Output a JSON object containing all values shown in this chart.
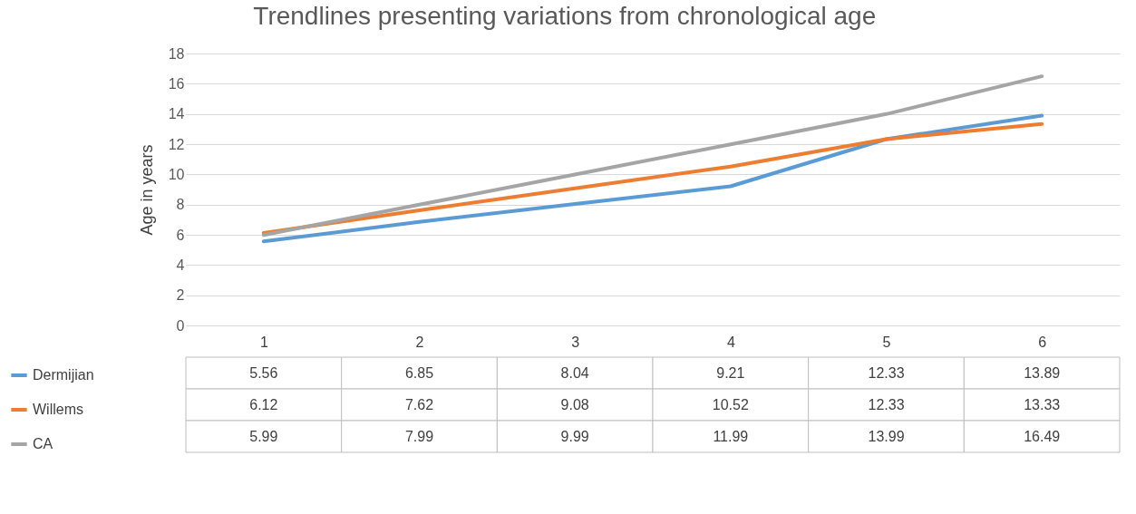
{
  "chart_data": {
    "type": "line",
    "title": "Trendlines presenting variations from chronological age",
    "ylabel": "Age in years",
    "categories": [
      "1",
      "2",
      "3",
      "4",
      "5",
      "6"
    ],
    "series": [
      {
        "name": "Dermijian",
        "color": "#5b9bd5",
        "values": [
          5.56,
          6.85,
          8.04,
          9.21,
          12.33,
          13.89
        ],
        "value_labels": [
          "5.56",
          "6.85",
          "8.04",
          "9.21",
          "12.33",
          "13.89"
        ]
      },
      {
        "name": "Willems",
        "color": "#ed7d31",
        "values": [
          6.12,
          7.62,
          9.08,
          10.52,
          12.33,
          13.33
        ],
        "value_labels": [
          "6.12",
          "7.62",
          "9.08",
          "10.52",
          "12.33",
          "13.33"
        ]
      },
      {
        "name": "CA",
        "color": "#a5a5a5",
        "values": [
          5.99,
          7.99,
          9.99,
          11.99,
          13.99,
          16.49
        ],
        "value_labels": [
          "5.99",
          "7.99",
          "9.99",
          "11.99",
          "13.99",
          "16.49"
        ]
      }
    ],
    "ylim": [
      0,
      18
    ],
    "yticks": [
      0,
      2,
      4,
      6,
      8,
      10,
      12,
      14,
      16,
      18
    ],
    "grid": "y",
    "legend": "bottom left",
    "marker": "none",
    "line_style": "solid"
  }
}
